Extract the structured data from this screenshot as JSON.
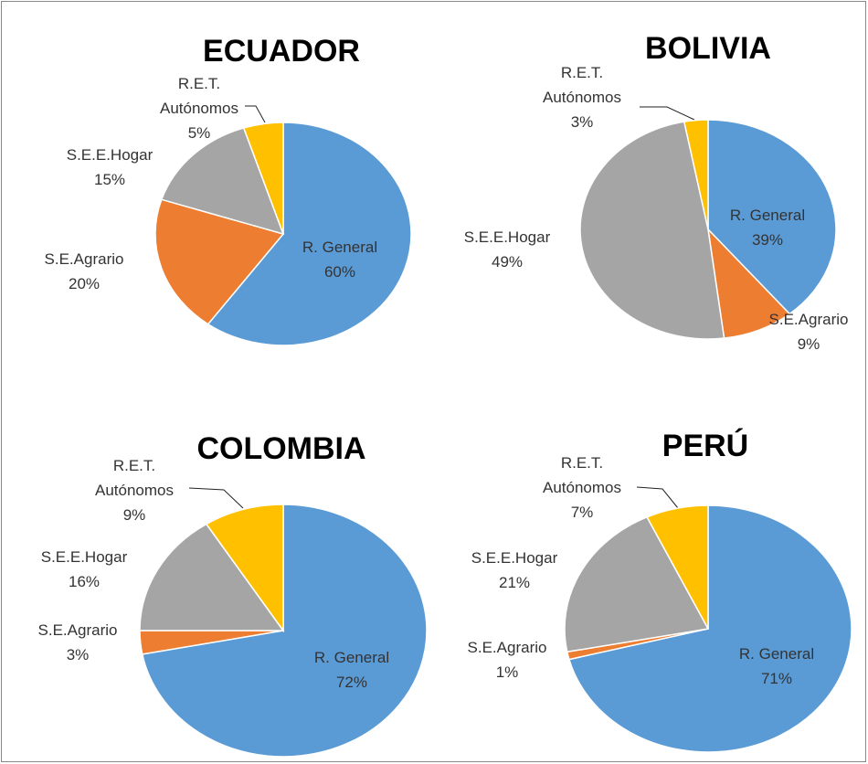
{
  "chart_data": [
    {
      "type": "pie",
      "title": "ECUADOR",
      "categories": [
        "R. General",
        "S.E.Agrario",
        "S.E.E.Hogar",
        "R.E.T. Autónomos"
      ],
      "values": [
        60,
        20,
        15,
        5
      ],
      "value_labels": [
        "60%",
        "20%",
        "15%",
        "5%"
      ],
      "colors": [
        "#5b9bd5",
        "#ed7d31",
        "#a5a5a5",
        "#ffc000"
      ]
    },
    {
      "type": "pie",
      "title": "BOLIVIA",
      "categories": [
        "R. General",
        "S.E.Agrario",
        "S.E.E.Hogar",
        "R.E.T. Autónomos"
      ],
      "values": [
        39,
        9,
        49,
        3
      ],
      "value_labels": [
        "39%",
        "9%",
        "49%",
        "3%"
      ],
      "colors": [
        "#5b9bd5",
        "#ed7d31",
        "#a5a5a5",
        "#ffc000"
      ]
    },
    {
      "type": "pie",
      "title": "COLOMBIA",
      "categories": [
        "R. General",
        "S.E.Agrario",
        "S.E.E.Hogar",
        "R.E.T. Autónomos"
      ],
      "values": [
        72,
        3,
        16,
        9
      ],
      "value_labels": [
        "72%",
        "3%",
        "16%",
        "9%"
      ],
      "colors": [
        "#5b9bd5",
        "#ed7d31",
        "#a5a5a5",
        "#ffc000"
      ]
    },
    {
      "type": "pie",
      "title": "PERÚ",
      "categories": [
        "R. General",
        "S.E.Agrario",
        "S.E.E.Hogar",
        "R.E.T. Autónomos"
      ],
      "values": [
        71,
        1,
        21,
        7
      ],
      "value_labels": [
        "71%",
        "1%",
        "21%",
        "7%"
      ],
      "colors": [
        "#5b9bd5",
        "#ed7d31",
        "#a5a5a5",
        "#ffc000"
      ]
    }
  ]
}
